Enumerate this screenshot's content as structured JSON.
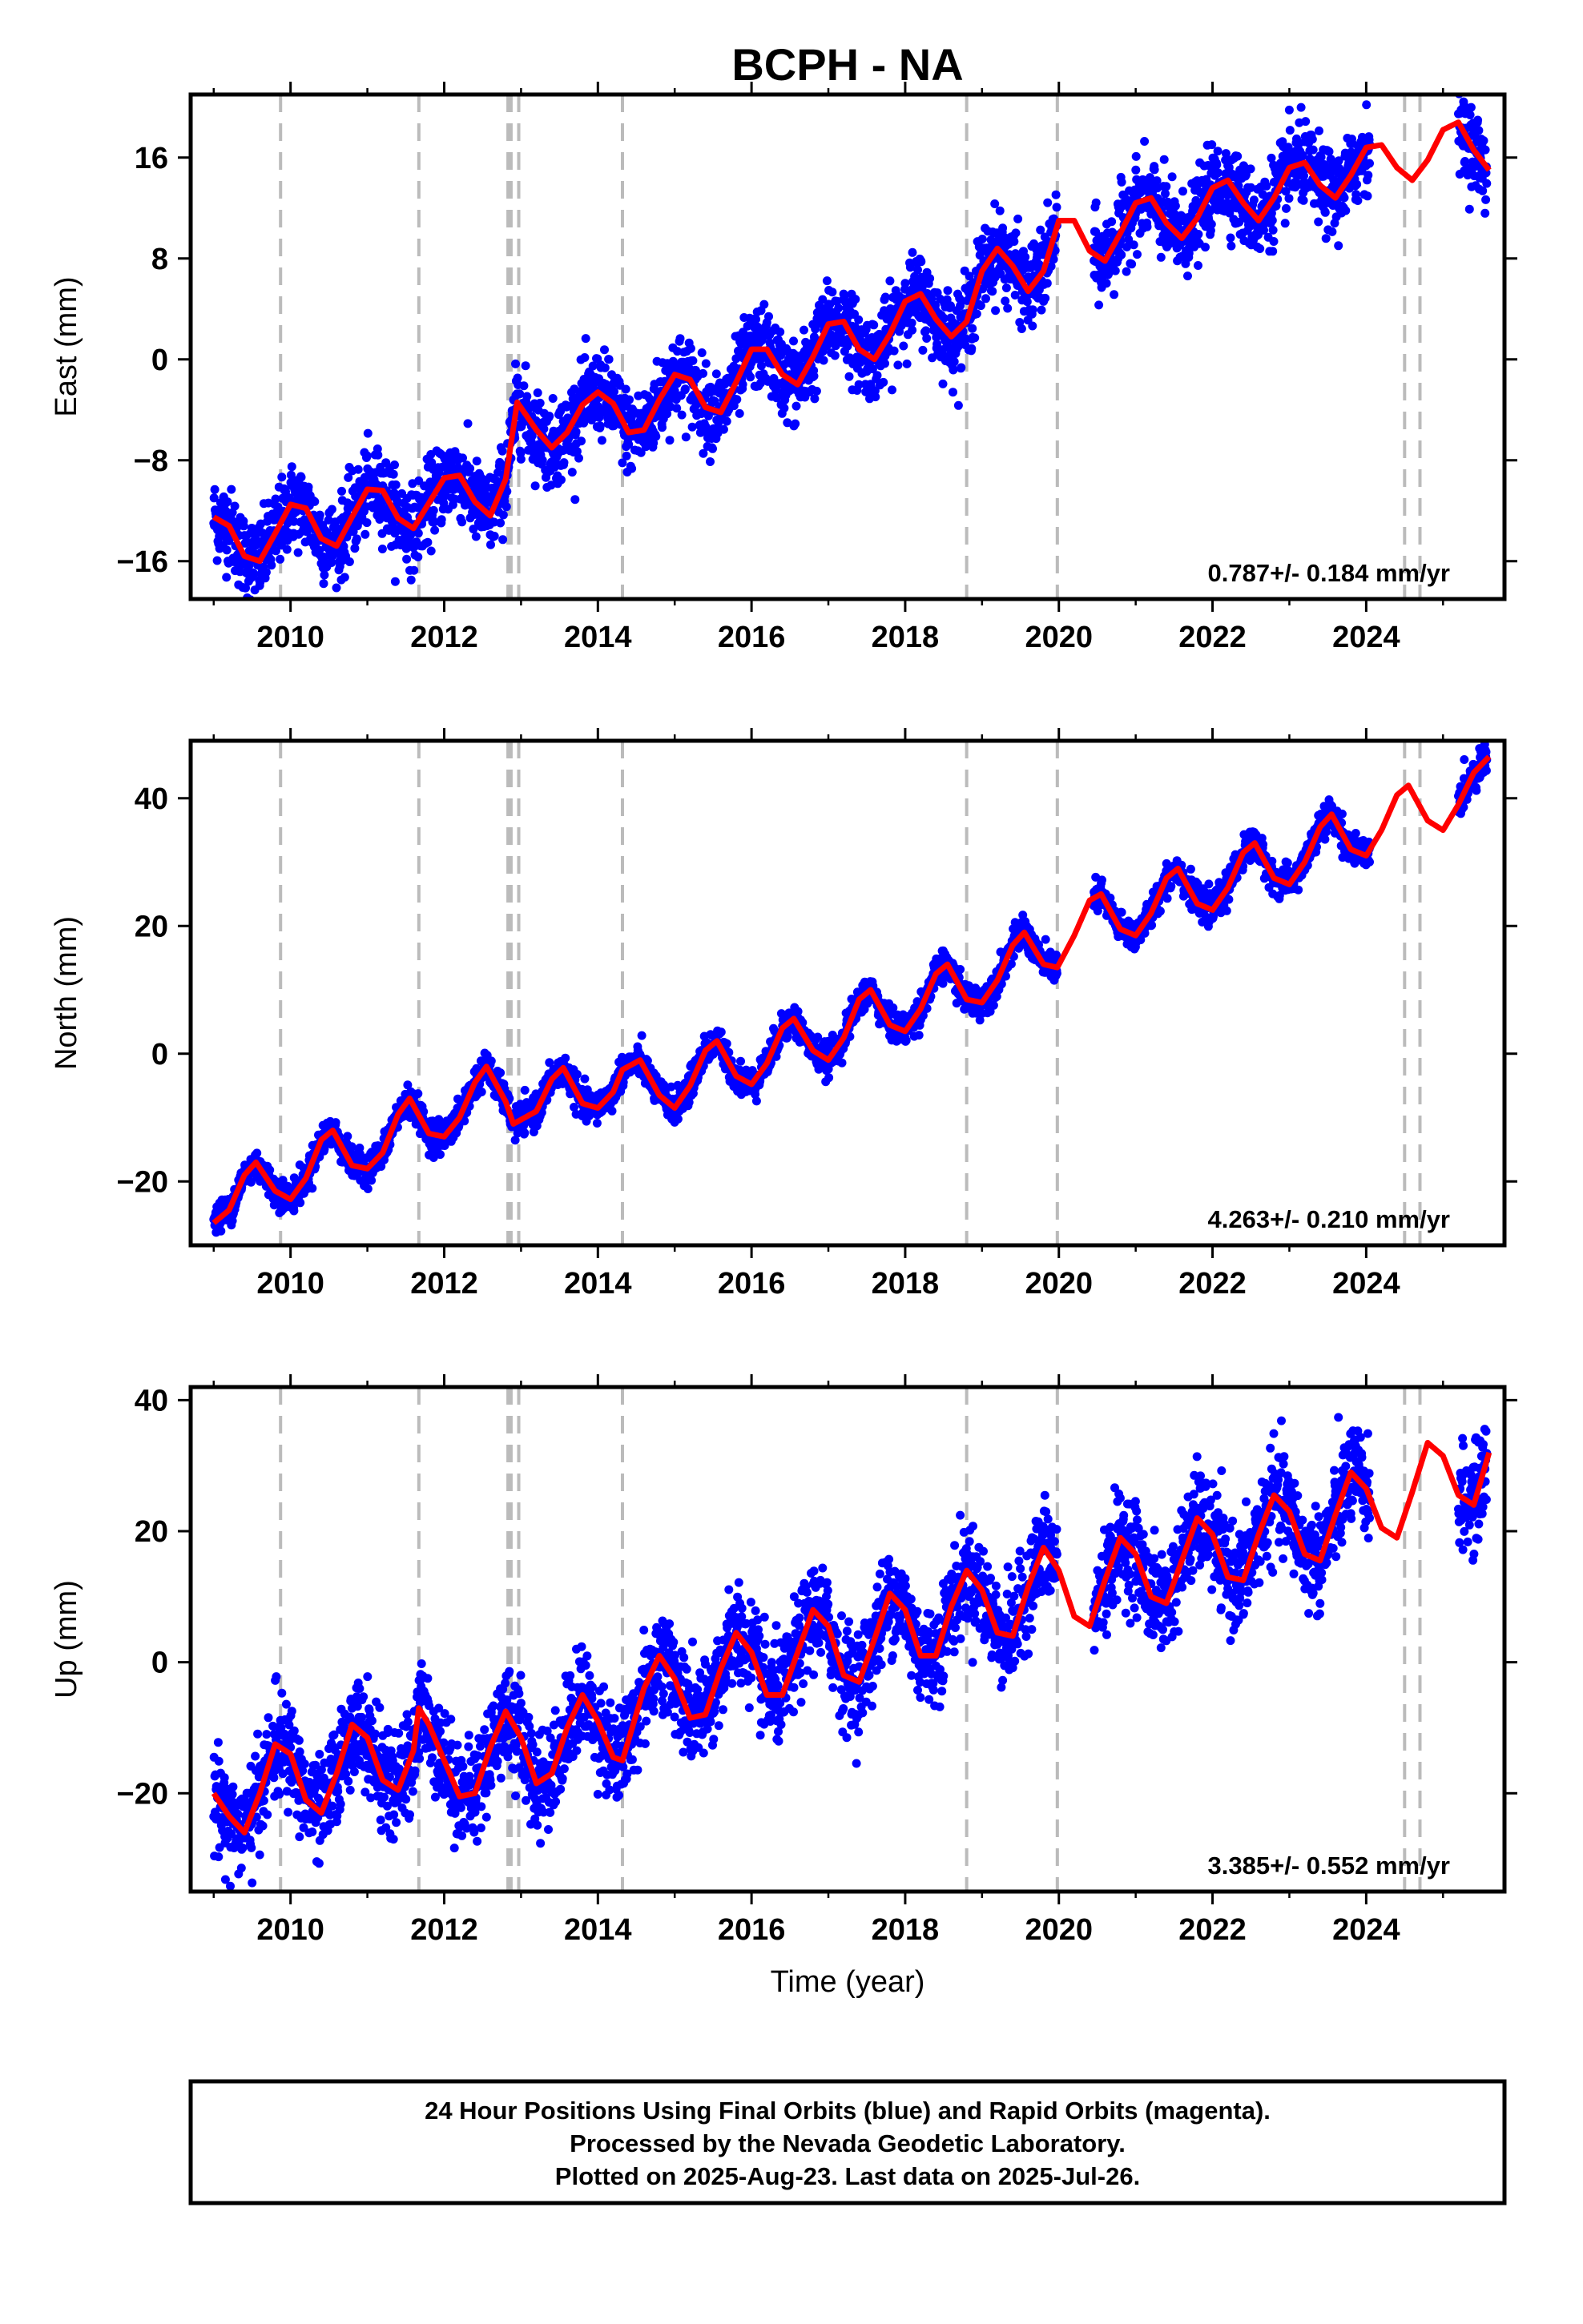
{
  "title": "BCPH - NA",
  "xlabel": "Time (year)",
  "footer": {
    "line1": "24 Hour Positions Using Final Orbits (blue) and Rapid Orbits (magenta).",
    "line2": "Processed by the Nevada Geodetic Laboratory.",
    "line3": "Plotted on 2025-Aug-23. Last data on 2025-Jul-26."
  },
  "colors": {
    "data": "#0000ff",
    "model": "#ff0000",
    "event": "#bbbbbb",
    "frame": "#000000"
  },
  "chart_data": [
    {
      "type": "scatter",
      "component": "East",
      "ylabel": "East (mm)",
      "rate": "0.787+/- 0.184 mm/yr",
      "xlim": [
        2008.7,
        2025.8
      ],
      "ylim": [
        -19,
        21
      ],
      "yticks": [
        -16,
        -8,
        0,
        8,
        16
      ],
      "xticks": [
        2010,
        2012,
        2014,
        2016,
        2018,
        2020,
        2022,
        2024
      ],
      "event_lines": [
        2009.87,
        2011.67,
        2012.83,
        2012.87,
        2012.97,
        2014.32,
        2018.8,
        2019.98,
        2024.5,
        2024.7
      ],
      "model_points": [
        [
          2009.0,
          -12.5
        ],
        [
          2009.2,
          -13.2
        ],
        [
          2009.4,
          -15.6
        ],
        [
          2009.6,
          -16.0
        ],
        [
          2009.8,
          -13.8
        ],
        [
          2010.0,
          -11.5
        ],
        [
          2010.2,
          -11.8
        ],
        [
          2010.4,
          -14.2
        ],
        [
          2010.6,
          -14.8
        ],
        [
          2010.8,
          -12.5
        ],
        [
          2011.0,
          -10.3
        ],
        [
          2011.2,
          -10.4
        ],
        [
          2011.4,
          -12.6
        ],
        [
          2011.6,
          -13.4
        ],
        [
          2011.8,
          -11.4
        ],
        [
          2012.0,
          -9.4
        ],
        [
          2012.2,
          -9.2
        ],
        [
          2012.4,
          -11.3
        ],
        [
          2012.6,
          -12.4
        ],
        [
          2012.8,
          -9.5
        ],
        [
          2012.95,
          -3.4
        ],
        [
          2013.2,
          -5.6
        ],
        [
          2013.4,
          -7.0
        ],
        [
          2013.6,
          -5.8
        ],
        [
          2013.8,
          -3.6
        ],
        [
          2014.0,
          -2.6
        ],
        [
          2014.2,
          -3.5
        ],
        [
          2014.4,
          -5.8
        ],
        [
          2014.6,
          -5.6
        ],
        [
          2014.8,
          -3.2
        ],
        [
          2015.0,
          -1.2
        ],
        [
          2015.2,
          -1.6
        ],
        [
          2015.4,
          -3.8
        ],
        [
          2015.6,
          -4.2
        ],
        [
          2015.8,
          -1.8
        ],
        [
          2016.0,
          0.8
        ],
        [
          2016.2,
          0.8
        ],
        [
          2016.4,
          -1.2
        ],
        [
          2016.6,
          -2.0
        ],
        [
          2016.8,
          0.2
        ],
        [
          2017.0,
          2.8
        ],
        [
          2017.2,
          3.0
        ],
        [
          2017.4,
          0.8
        ],
        [
          2017.6,
          0.0
        ],
        [
          2017.8,
          2.0
        ],
        [
          2018.0,
          4.6
        ],
        [
          2018.2,
          5.2
        ],
        [
          2018.4,
          3.2
        ],
        [
          2018.6,
          1.8
        ],
        [
          2018.8,
          3.0
        ],
        [
          2019.0,
          7.0
        ],
        [
          2019.2,
          8.8
        ],
        [
          2019.4,
          7.4
        ],
        [
          2019.6,
          5.4
        ],
        [
          2019.8,
          7.0
        ],
        [
          2020.0,
          11.0
        ],
        [
          2020.2,
          11.0
        ],
        [
          2020.4,
          8.6
        ],
        [
          2020.6,
          7.8
        ],
        [
          2020.8,
          10.0
        ],
        [
          2021.0,
          12.4
        ],
        [
          2021.2,
          12.8
        ],
        [
          2021.4,
          10.8
        ],
        [
          2021.6,
          9.6
        ],
        [
          2021.8,
          11.2
        ],
        [
          2022.0,
          13.6
        ],
        [
          2022.2,
          14.2
        ],
        [
          2022.4,
          12.4
        ],
        [
          2022.6,
          11.0
        ],
        [
          2022.8,
          12.8
        ],
        [
          2023.0,
          15.2
        ],
        [
          2023.2,
          15.6
        ],
        [
          2023.4,
          13.8
        ],
        [
          2023.6,
          12.8
        ],
        [
          2023.8,
          14.6
        ],
        [
          2024.0,
          16.8
        ],
        [
          2024.2,
          17.0
        ],
        [
          2024.4,
          15.2
        ],
        [
          2024.6,
          14.2
        ],
        [
          2024.8,
          15.8
        ],
        [
          2025.0,
          18.2
        ],
        [
          2025.2,
          18.8
        ],
        [
          2025.4,
          16.6
        ],
        [
          2025.6,
          15.0
        ]
      ],
      "scatter_sigma": 1.6
    },
    {
      "type": "scatter",
      "component": "North",
      "ylabel": "North (mm)",
      "rate": "4.263+/- 0.210 mm/yr",
      "xlim": [
        2008.7,
        2025.8
      ],
      "ylim": [
        -30,
        49
      ],
      "yticks": [
        -20,
        0,
        20,
        40
      ],
      "xticks": [
        2010,
        2012,
        2014,
        2016,
        2018,
        2020,
        2022,
        2024
      ],
      "event_lines": [
        2009.87,
        2011.67,
        2012.83,
        2012.87,
        2012.97,
        2014.32,
        2018.8,
        2019.98,
        2024.5,
        2024.7
      ],
      "model_points": [
        [
          2009.0,
          -26.5
        ],
        [
          2009.2,
          -24.5
        ],
        [
          2009.4,
          -19.0
        ],
        [
          2009.55,
          -17.0
        ],
        [
          2009.8,
          -21.5
        ],
        [
          2010.0,
          -22.8
        ],
        [
          2010.2,
          -19.5
        ],
        [
          2010.4,
          -13.5
        ],
        [
          2010.55,
          -12.0
        ],
        [
          2010.8,
          -17.5
        ],
        [
          2011.0,
          -18.0
        ],
        [
          2011.2,
          -15.5
        ],
        [
          2011.4,
          -9.5
        ],
        [
          2011.55,
          -7.0
        ],
        [
          2011.8,
          -12.5
        ],
        [
          2012.0,
          -13.0
        ],
        [
          2012.2,
          -10.0
        ],
        [
          2012.4,
          -4.5
        ],
        [
          2012.55,
          -2.0
        ],
        [
          2012.8,
          -7.5
        ],
        [
          2012.9,
          -11.0
        ],
        [
          2013.2,
          -9.0
        ],
        [
          2013.4,
          -4.0
        ],
        [
          2013.55,
          -2.2
        ],
        [
          2013.8,
          -7.8
        ],
        [
          2014.0,
          -8.5
        ],
        [
          2014.2,
          -6.0
        ],
        [
          2014.32,
          -2.5
        ],
        [
          2014.55,
          -1.0
        ],
        [
          2014.8,
          -6.5
        ],
        [
          2015.0,
          -8.5
        ],
        [
          2015.2,
          -5.0
        ],
        [
          2015.4,
          0.5
        ],
        [
          2015.55,
          2.0
        ],
        [
          2015.8,
          -3.5
        ],
        [
          2016.0,
          -4.8
        ],
        [
          2016.2,
          -1.5
        ],
        [
          2016.4,
          4.0
        ],
        [
          2016.55,
          5.5
        ],
        [
          2016.8,
          0.5
        ],
        [
          2017.0,
          -1.0
        ],
        [
          2017.2,
          2.5
        ],
        [
          2017.4,
          8.5
        ],
        [
          2017.55,
          10.0
        ],
        [
          2017.8,
          4.5
        ],
        [
          2018.0,
          3.5
        ],
        [
          2018.2,
          7.0
        ],
        [
          2018.4,
          12.5
        ],
        [
          2018.55,
          14.0
        ],
        [
          2018.8,
          8.5
        ],
        [
          2019.0,
          8.0
        ],
        [
          2019.2,
          11.5
        ],
        [
          2019.4,
          17.0
        ],
        [
          2019.55,
          19.0
        ],
        [
          2019.8,
          14.0
        ],
        [
          2019.98,
          13.5
        ],
        [
          2020.2,
          18.5
        ],
        [
          2020.4,
          24.0
        ],
        [
          2020.55,
          25.0
        ],
        [
          2020.8,
          19.5
        ],
        [
          2021.0,
          18.5
        ],
        [
          2021.2,
          22.0
        ],
        [
          2021.4,
          27.5
        ],
        [
          2021.55,
          29.0
        ],
        [
          2021.8,
          23.5
        ],
        [
          2022.0,
          22.5
        ],
        [
          2022.2,
          26.0
        ],
        [
          2022.4,
          31.5
        ],
        [
          2022.55,
          33.0
        ],
        [
          2022.8,
          27.5
        ],
        [
          2023.0,
          26.5
        ],
        [
          2023.2,
          30.0
        ],
        [
          2023.4,
          35.5
        ],
        [
          2023.55,
          37.5
        ],
        [
          2023.8,
          32.0
        ],
        [
          2024.0,
          31.0
        ],
        [
          2024.2,
          35.0
        ],
        [
          2024.4,
          40.5
        ],
        [
          2024.55,
          42.0
        ],
        [
          2024.8,
          36.5
        ],
        [
          2025.0,
          35.0
        ],
        [
          2025.2,
          39.0
        ],
        [
          2025.4,
          44.0
        ],
        [
          2025.6,
          46.5
        ]
      ],
      "scatter_sigma": 1.2
    },
    {
      "type": "scatter",
      "component": "Up",
      "ylabel": "Up (mm)",
      "rate": "3.385+/- 0.552 mm/yr",
      "xlim": [
        2008.7,
        2025.8
      ],
      "ylim": [
        -35,
        42
      ],
      "yticks": [
        -20,
        0,
        20,
        40
      ],
      "xticks": [
        2010,
        2012,
        2014,
        2016,
        2018,
        2020,
        2022,
        2024
      ],
      "event_lines": [
        2009.87,
        2011.67,
        2012.83,
        2012.87,
        2012.97,
        2014.32,
        2018.8,
        2019.98,
        2024.5,
        2024.7
      ],
      "model_points": [
        [
          2009.0,
          -20.0
        ],
        [
          2009.2,
          -23.5
        ],
        [
          2009.4,
          -26.0
        ],
        [
          2009.6,
          -20.0
        ],
        [
          2009.8,
          -12.5
        ],
        [
          2010.0,
          -14.0
        ],
        [
          2010.2,
          -21.0
        ],
        [
          2010.4,
          -23.0
        ],
        [
          2010.6,
          -17.0
        ],
        [
          2010.8,
          -9.5
        ],
        [
          2011.0,
          -11.5
        ],
        [
          2011.2,
          -18.0
        ],
        [
          2011.4,
          -19.5
        ],
        [
          2011.6,
          -13.5
        ],
        [
          2011.67,
          -7.0
        ],
        [
          2011.8,
          -9.5
        ],
        [
          2012.0,
          -15.0
        ],
        [
          2012.2,
          -20.5
        ],
        [
          2012.4,
          -20.0
        ],
        [
          2012.6,
          -13.0
        ],
        [
          2012.8,
          -7.5
        ],
        [
          2013.0,
          -11.5
        ],
        [
          2013.2,
          -18.5
        ],
        [
          2013.4,
          -17.0
        ],
        [
          2013.6,
          -10.0
        ],
        [
          2013.8,
          -5.0
        ],
        [
          2014.0,
          -9.0
        ],
        [
          2014.2,
          -14.5
        ],
        [
          2014.32,
          -15.0
        ],
        [
          2014.6,
          -4.0
        ],
        [
          2014.8,
          1.0
        ],
        [
          2015.0,
          -2.5
        ],
        [
          2015.2,
          -8.5
        ],
        [
          2015.4,
          -8.0
        ],
        [
          2015.6,
          -1.0
        ],
        [
          2015.8,
          4.5
        ],
        [
          2016.0,
          1.5
        ],
        [
          2016.2,
          -5.0
        ],
        [
          2016.4,
          -5.0
        ],
        [
          2016.6,
          1.5
        ],
        [
          2016.8,
          8.0
        ],
        [
          2017.0,
          5.5
        ],
        [
          2017.2,
          -2.0
        ],
        [
          2017.4,
          -3.0
        ],
        [
          2017.6,
          3.5
        ],
        [
          2017.8,
          10.5
        ],
        [
          2018.0,
          8.0
        ],
        [
          2018.2,
          1.0
        ],
        [
          2018.4,
          1.0
        ],
        [
          2018.6,
          8.5
        ],
        [
          2018.8,
          14.0
        ],
        [
          2019.0,
          11.0
        ],
        [
          2019.2,
          4.5
        ],
        [
          2019.4,
          4.0
        ],
        [
          2019.6,
          11.5
        ],
        [
          2019.8,
          17.5
        ],
        [
          2020.0,
          14.0
        ],
        [
          2020.2,
          7.0
        ],
        [
          2020.4,
          5.5
        ],
        [
          2020.6,
          12.5
        ],
        [
          2020.8,
          19.0
        ],
        [
          2021.0,
          16.5
        ],
        [
          2021.2,
          10.0
        ],
        [
          2021.4,
          9.0
        ],
        [
          2021.6,
          15.5
        ],
        [
          2021.8,
          22.0
        ],
        [
          2022.0,
          19.5
        ],
        [
          2022.2,
          13.0
        ],
        [
          2022.4,
          12.5
        ],
        [
          2022.6,
          19.5
        ],
        [
          2022.8,
          25.5
        ],
        [
          2023.0,
          23.0
        ],
        [
          2023.2,
          16.5
        ],
        [
          2023.4,
          15.5
        ],
        [
          2023.6,
          22.5
        ],
        [
          2023.8,
          29.0
        ],
        [
          2024.0,
          26.5
        ],
        [
          2024.2,
          20.5
        ],
        [
          2024.4,
          19.0
        ],
        [
          2024.6,
          26.0
        ],
        [
          2024.8,
          33.5
        ],
        [
          2025.0,
          31.5
        ],
        [
          2025.2,
          25.5
        ],
        [
          2025.4,
          24.0
        ],
        [
          2025.6,
          32.0
        ]
      ],
      "scatter_sigma": 3.8
    }
  ]
}
